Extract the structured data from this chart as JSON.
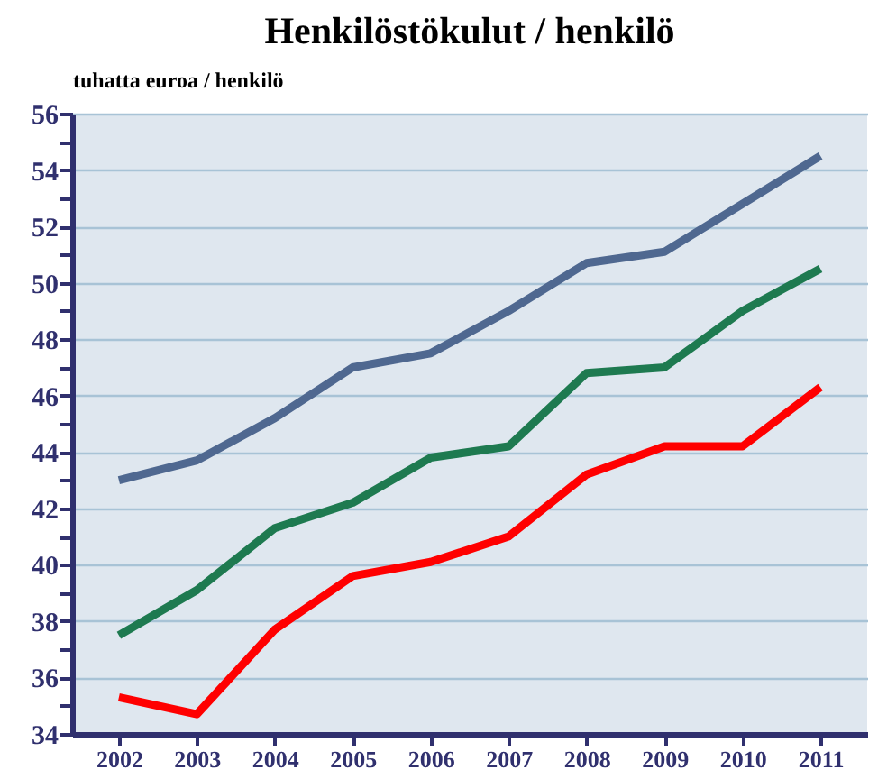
{
  "chart_data": {
    "type": "line",
    "title": "Henkilöstökulut / henkilö",
    "ylabel": "tuhatta euroa / henkilö",
    "categories": [
      "2002",
      "2003",
      "2004",
      "2005",
      "2006",
      "2007",
      "2008",
      "2009",
      "2010",
      "2011"
    ],
    "series": [
      {
        "color": "#4f6890",
        "values": [
          43.0,
          43.7,
          45.2,
          47.0,
          47.5,
          49.0,
          50.7,
          51.1,
          52.8,
          54.5
        ]
      },
      {
        "color": "#1e7a50",
        "values": [
          37.5,
          39.1,
          41.3,
          42.2,
          43.8,
          44.2,
          46.8,
          47.0,
          49.0,
          50.5
        ]
      },
      {
        "color": "#ff0000",
        "values": [
          35.3,
          34.7,
          37.7,
          39.6,
          40.1,
          41.0,
          43.2,
          44.2,
          44.2,
          46.3
        ]
      }
    ],
    "ylim": [
      34,
      56
    ],
    "yticks": [
      34,
      {
        "value": 35,
        "label": null
      },
      36,
      {
        "value": 37,
        "label": null
      },
      38,
      {
        "value": 39,
        "label": null
      },
      40,
      {
        "value": 41,
        "label": null
      },
      42,
      {
        "value": 43,
        "label": null
      },
      44,
      {
        "value": 45,
        "label": null
      },
      46,
      {
        "value": 47,
        "label": null
      },
      48,
      {
        "value": 49,
        "label": null
      },
      50,
      {
        "value": 51,
        "label": null
      },
      52,
      {
        "value": 53,
        "label": null
      },
      54,
      {
        "value": 55,
        "label": null
      },
      56
    ],
    "grid": "y",
    "line_style": "solid",
    "marker": "none"
  }
}
